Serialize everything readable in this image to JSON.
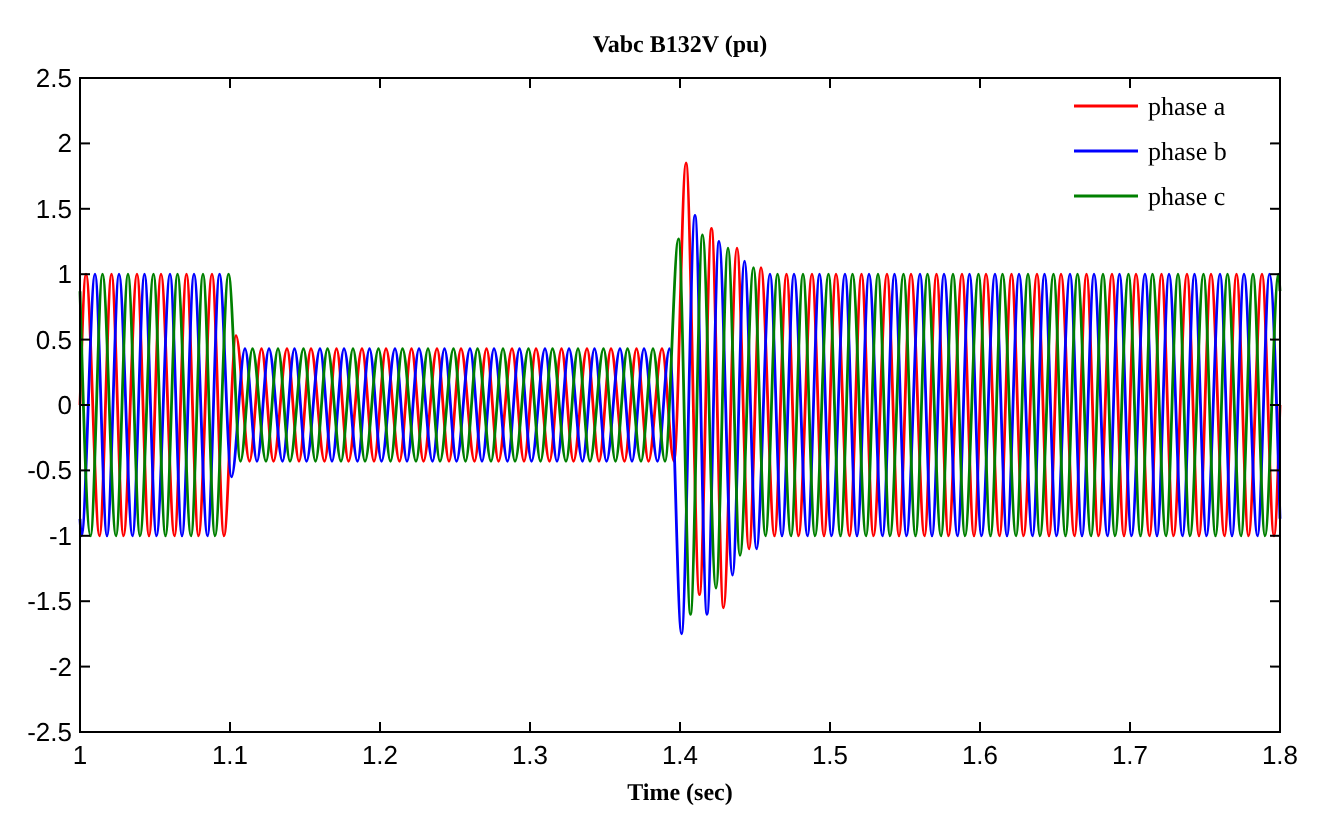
{
  "chart_data": {
    "type": "line",
    "title": "Vabc B132V (pu)",
    "xlabel": "Time (sec)",
    "xlim": [
      1,
      1.8
    ],
    "xticks": [
      1,
      1.1,
      1.2,
      1.3,
      1.4,
      1.5,
      1.6,
      1.7,
      1.8
    ],
    "ylim": [
      -2.5,
      2.5
    ],
    "yticks": [
      -2.5,
      -2,
      -1.5,
      -1,
      -0.5,
      0,
      0.5,
      1,
      1.5,
      2,
      2.5
    ],
    "grid": false,
    "legend": "top right",
    "marker": "none",
    "line_style": "solid",
    "series": [
      {
        "name": "phase a",
        "color": "#ff0000",
        "x": [
          1,
          1.004,
          1.013,
          1.021,
          1.029,
          1.038,
          1.046,
          1.054,
          1.063,
          1.071,
          1.079,
          1.088,
          1.096,
          1.104,
          1.113,
          1.121,
          1.129,
          1.138,
          1.146,
          1.154,
          1.163,
          1.171,
          1.179,
          1.188,
          1.196,
          1.204,
          1.213,
          1.221,
          1.229,
          1.238,
          1.246,
          1.254,
          1.263,
          1.271,
          1.279,
          1.288,
          1.296,
          1.304,
          1.313,
          1.321,
          1.329,
          1.338,
          1.346,
          1.354,
          1.363,
          1.371,
          1.379,
          1.388,
          1.396,
          1.404,
          1.413,
          1.421,
          1.429,
          1.438,
          1.446,
          1.454,
          1.463,
          1.471,
          1.479,
          1.488,
          1.496,
          1.504,
          1.513,
          1.521,
          1.529,
          1.538,
          1.546,
          1.554,
          1.563,
          1.571,
          1.579,
          1.588,
          1.596,
          1.604,
          1.613,
          1.621,
          1.629,
          1.638,
          1.646,
          1.654,
          1.663,
          1.671,
          1.679,
          1.688,
          1.696,
          1.704,
          1.713,
          1.721,
          1.729,
          1.738,
          1.746,
          1.754,
          1.763,
          1.771,
          1.779,
          1.788,
          1.796,
          1.8
        ],
        "values": [
          0,
          1,
          -1,
          1,
          -1,
          1,
          -1,
          1,
          -1,
          1,
          -1,
          1,
          -1,
          0.53,
          -0.43,
          0.43,
          -0.43,
          0.43,
          -0.43,
          0.43,
          -0.43,
          0.43,
          -0.43,
          0.43,
          -0.43,
          0.43,
          -0.43,
          0.43,
          -0.43,
          0.43,
          -0.43,
          0.43,
          -0.43,
          0.43,
          -0.43,
          0.43,
          -0.43,
          0.43,
          -0.43,
          0.43,
          -0.43,
          0.43,
          -0.43,
          0.43,
          -0.43,
          0.43,
          -0.43,
          0.43,
          -0.43,
          1.85,
          -1.45,
          1.35,
          -1.55,
          1.2,
          -1.1,
          1.05,
          -1,
          1,
          -1,
          1,
          -1,
          1,
          -1,
          1,
          -1,
          1,
          -1,
          1,
          -1,
          1,
          -1,
          1,
          -1,
          1,
          -1,
          1,
          -1,
          1,
          -1,
          1,
          -1,
          1,
          -1,
          1,
          -1,
          1,
          -1,
          1,
          -1,
          1,
          -1,
          1,
          -1,
          1,
          -1,
          1,
          -1,
          0
        ]
      },
      {
        "name": "phase b",
        "color": "#0000ff",
        "x": [
          1,
          1.001,
          1.01,
          1.018,
          1.026,
          1.035,
          1.043,
          1.051,
          1.06,
          1.068,
          1.076,
          1.085,
          1.093,
          1.101,
          1.11,
          1.118,
          1.126,
          1.135,
          1.143,
          1.151,
          1.16,
          1.168,
          1.176,
          1.185,
          1.193,
          1.201,
          1.21,
          1.218,
          1.226,
          1.235,
          1.243,
          1.251,
          1.26,
          1.268,
          1.276,
          1.285,
          1.293,
          1.301,
          1.31,
          1.318,
          1.326,
          1.335,
          1.343,
          1.351,
          1.36,
          1.368,
          1.376,
          1.385,
          1.393,
          1.401,
          1.41,
          1.418,
          1.426,
          1.435,
          1.443,
          1.451,
          1.46,
          1.468,
          1.476,
          1.485,
          1.493,
          1.501,
          1.51,
          1.518,
          1.526,
          1.535,
          1.543,
          1.551,
          1.56,
          1.568,
          1.576,
          1.585,
          1.593,
          1.601,
          1.61,
          1.618,
          1.626,
          1.635,
          1.643,
          1.651,
          1.66,
          1.668,
          1.676,
          1.685,
          1.693,
          1.701,
          1.71,
          1.718,
          1.726,
          1.735,
          1.743,
          1.751,
          1.76,
          1.768,
          1.776,
          1.785,
          1.793,
          1.8
        ],
        "values": [
          -0.87,
          -1,
          1,
          -1,
          1,
          -1,
          1,
          -1,
          1,
          -1,
          1,
          -1,
          1,
          -0.55,
          0.43,
          -0.43,
          0.43,
          -0.43,
          0.43,
          -0.43,
          0.43,
          -0.43,
          0.43,
          -0.43,
          0.43,
          -0.43,
          0.43,
          -0.43,
          0.43,
          -0.43,
          0.43,
          -0.43,
          0.43,
          -0.43,
          0.43,
          -0.43,
          0.43,
          -0.43,
          0.43,
          -0.43,
          0.43,
          -0.43,
          0.43,
          -0.43,
          0.43,
          -0.43,
          0.43,
          -0.43,
          0.43,
          -1.75,
          1.45,
          -1.6,
          1.25,
          -1.3,
          1.1,
          -1.1,
          1,
          -1,
          1,
          -1,
          1,
          -1,
          1,
          -1,
          1,
          -1,
          1,
          -1,
          1,
          -1,
          1,
          -1,
          1,
          -1,
          1,
          -1,
          1,
          -1,
          1,
          -1,
          1,
          -1,
          1,
          -1,
          1,
          -1,
          1,
          -1,
          1,
          -1,
          1,
          -1,
          1,
          -1,
          1,
          -1,
          1,
          -0.87
        ]
      },
      {
        "name": "phase c",
        "color": "#008000",
        "x": [
          1,
          1.007,
          1.015,
          1.024,
          1.032,
          1.04,
          1.049,
          1.057,
          1.065,
          1.074,
          1.082,
          1.09,
          1.099,
          1.107,
          1.115,
          1.124,
          1.132,
          1.14,
          1.149,
          1.157,
          1.165,
          1.174,
          1.182,
          1.19,
          1.199,
          1.207,
          1.215,
          1.224,
          1.232,
          1.24,
          1.249,
          1.257,
          1.265,
          1.274,
          1.282,
          1.29,
          1.299,
          1.307,
          1.315,
          1.324,
          1.332,
          1.34,
          1.349,
          1.357,
          1.365,
          1.374,
          1.382,
          1.39,
          1.399,
          1.407,
          1.415,
          1.424,
          1.432,
          1.44,
          1.449,
          1.457,
          1.465,
          1.474,
          1.482,
          1.49,
          1.499,
          1.507,
          1.515,
          1.524,
          1.532,
          1.54,
          1.549,
          1.557,
          1.565,
          1.574,
          1.582,
          1.59,
          1.599,
          1.607,
          1.615,
          1.624,
          1.632,
          1.64,
          1.649,
          1.657,
          1.665,
          1.674,
          1.682,
          1.69,
          1.699,
          1.707,
          1.715,
          1.724,
          1.732,
          1.74,
          1.749,
          1.757,
          1.765,
          1.774,
          1.782,
          1.79,
          1.799,
          1.8
        ],
        "values": [
          0.87,
          -1,
          1,
          -1,
          1,
          -1,
          1,
          -1,
          1,
          -1,
          1,
          -1,
          1,
          -0.43,
          0.43,
          -0.43,
          0.43,
          -0.43,
          0.43,
          -0.43,
          0.43,
          -0.43,
          0.43,
          -0.43,
          0.43,
          -0.43,
          0.43,
          -0.43,
          0.43,
          -0.43,
          0.43,
          -0.43,
          0.43,
          -0.43,
          0.43,
          -0.43,
          0.43,
          -0.43,
          0.43,
          -0.43,
          0.43,
          -0.43,
          0.43,
          -0.43,
          0.43,
          -0.43,
          0.43,
          -0.43,
          1.27,
          -1.6,
          1.3,
          -1.4,
          1.2,
          -1.15,
          1.05,
          -1,
          1,
          -1,
          1,
          -1,
          1,
          -1,
          1,
          -1,
          1,
          -1,
          1,
          -1,
          1,
          -1,
          1,
          -1,
          1,
          -1,
          1,
          -1,
          1,
          -1,
          1,
          -1,
          1,
          -1,
          1,
          -1,
          1,
          -1,
          1,
          -1,
          1,
          -1,
          1,
          -1,
          1,
          -1,
          1,
          -1,
          1,
          0.87
        ]
      }
    ]
  }
}
